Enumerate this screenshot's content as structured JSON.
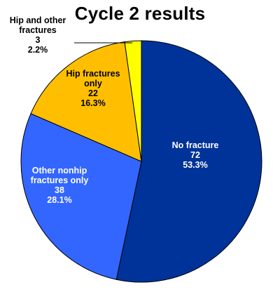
{
  "chart_data": {
    "type": "pie",
    "title": "Cycle 2 results",
    "start_angle_deg": 0,
    "direction": "clockwise",
    "slices": [
      {
        "label": [
          "No fracture"
        ],
        "count": "72",
        "percent": "53.3%",
        "value": 72,
        "color": "#003399",
        "text_color": "#ffffff"
      },
      {
        "label": [
          "Other nonhip",
          "fractures only"
        ],
        "count": "38",
        "percent": "28.1%",
        "value": 38,
        "color": "#3366ff",
        "text_color": "#ffffff"
      },
      {
        "label": [
          "Hip fractures",
          "only"
        ],
        "count": "22",
        "percent": "16.3%",
        "value": 22,
        "color": "#ffbf00",
        "text_color": "#000000"
      },
      {
        "label": [
          "Hip and other",
          "fractures"
        ],
        "count": "3",
        "percent": "2.2%",
        "value": 3,
        "color": "#ffff00",
        "text_color": "#000000"
      }
    ]
  }
}
